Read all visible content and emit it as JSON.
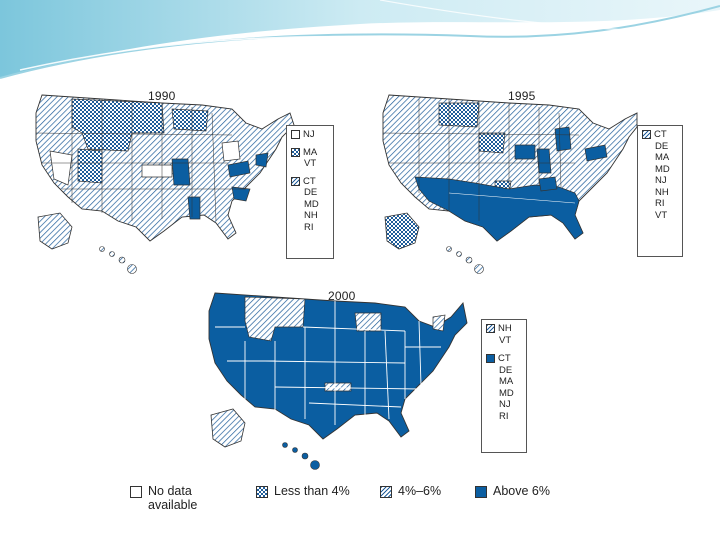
{
  "maps": [
    {
      "title": "1990",
      "box_groups": [
        {
          "category": "no_data",
          "states": [
            "NJ"
          ]
        },
        {
          "category": "less_than_4",
          "states": [
            "MA",
            "VT"
          ]
        },
        {
          "category": "4_to_6",
          "states": [
            "CT",
            "DE",
            "MD",
            "NH",
            "RI"
          ]
        }
      ]
    },
    {
      "title": "1995",
      "box_groups": [
        {
          "category": "4_to_6",
          "states": [
            "CT",
            "DE",
            "MA",
            "MD",
            "NJ",
            "NH",
            "RI",
            "VT"
          ]
        }
      ]
    },
    {
      "title": "2000",
      "box_groups": [
        {
          "category": "4_to_6",
          "states": [
            "NH",
            "VT"
          ]
        },
        {
          "category": "above_6",
          "states": [
            "CT",
            "DE",
            "MA",
            "MD",
            "NJ",
            "RI"
          ]
        }
      ]
    }
  ],
  "legend": [
    {
      "key": "no_data",
      "label": "No data\navailable"
    },
    {
      "key": "less_than_4",
      "label": "Less than 4%"
    },
    {
      "key": "4_to_6",
      "label": "4%–6%"
    },
    {
      "key": "above_6",
      "label": "Above 6%"
    }
  ],
  "colors": {
    "above_6": "#0b5ea1",
    "hatch": "#1f5d9a",
    "no_data": "#ffffff",
    "outline": "#333333",
    "banner": "#bfe2ee"
  }
}
